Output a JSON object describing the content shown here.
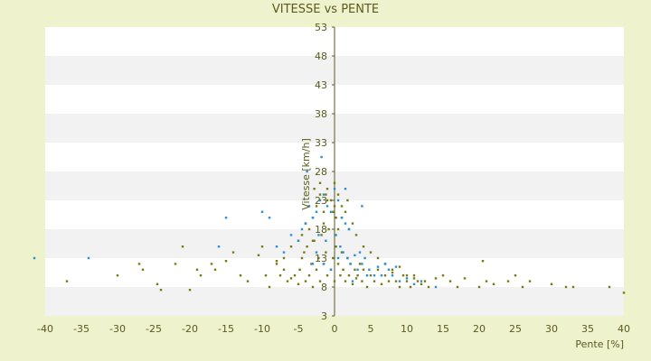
{
  "chart_data": {
    "type": "scatter",
    "title": "VITESSE vs PENTE",
    "xlabel": "Pente [%]",
    "ylabel": "Vitesse [km/h]",
    "xlim": [
      -40,
      40
    ],
    "ylim": [
      3,
      53
    ],
    "x_ticks": [
      -40,
      -35,
      -30,
      -25,
      -20,
      -15,
      -10,
      -5,
      0,
      5,
      10,
      15,
      20,
      25,
      30,
      35,
      40
    ],
    "y_ticks": [
      3,
      8,
      13,
      18,
      23,
      28,
      33,
      38,
      43,
      48,
      53
    ],
    "grid": "horizontal bands",
    "legend": "none",
    "colors": {
      "background": "#eef2cd",
      "plot_band_light": "#ffffff",
      "plot_band_dark": "#f2f2f2",
      "axis": "#5a5a1e",
      "series_olive": "#7a7a14",
      "series_blue": "#2a8fd4"
    },
    "series": [
      {
        "color": "#7a7a14",
        "points": [
          [
            -37,
            9
          ],
          [
            -30,
            10
          ],
          [
            -27,
            12
          ],
          [
            -26.5,
            11
          ],
          [
            -24.5,
            8.5
          ],
          [
            -24,
            7.5
          ],
          [
            -22,
            12
          ],
          [
            -21,
            15
          ],
          [
            -20,
            7.5
          ],
          [
            -19,
            11
          ],
          [
            -18.5,
            10
          ],
          [
            -17,
            12
          ],
          [
            -16.5,
            11
          ],
          [
            -15,
            12.5
          ],
          [
            -14,
            14
          ],
          [
            -13,
            10
          ],
          [
            -12,
            9
          ],
          [
            -10.5,
            13.5
          ],
          [
            -10,
            15
          ],
          [
            -9.5,
            10
          ],
          [
            -9,
            8
          ],
          [
            -8,
            12
          ],
          [
            -7.5,
            10
          ],
          [
            -7,
            11
          ],
          [
            -6.5,
            9
          ],
          [
            -6,
            9.5
          ],
          [
            -5.5,
            10
          ],
          [
            -5,
            8.5
          ],
          [
            -4.8,
            11
          ],
          [
            -4.5,
            13
          ],
          [
            -4.2,
            14
          ],
          [
            -4,
            9
          ],
          [
            -3.8,
            15
          ],
          [
            -3.5,
            10
          ],
          [
            -3.2,
            12
          ],
          [
            -3,
            8
          ],
          [
            -2.8,
            16
          ],
          [
            -2.5,
            11
          ],
          [
            -2.2,
            13
          ],
          [
            -2,
            9
          ],
          [
            -1.8,
            17
          ],
          [
            -1.5,
            12
          ],
          [
            -1.2,
            14
          ],
          [
            -1,
            10
          ],
          [
            -0.8,
            18
          ],
          [
            -0.5,
            11
          ],
          [
            -0.2,
            13
          ],
          [
            0,
            9
          ],
          [
            0.2,
            15
          ],
          [
            0.5,
            12
          ],
          [
            0.8,
            10
          ],
          [
            1,
            14
          ],
          [
            1.2,
            11
          ],
          [
            1.5,
            9
          ],
          [
            1.8,
            13
          ],
          [
            2,
            10
          ],
          [
            2.2,
            12
          ],
          [
            2.5,
            8.5
          ],
          [
            2.8,
            11
          ],
          [
            3,
            9.5
          ],
          [
            3.2,
            10
          ],
          [
            3.5,
            12
          ],
          [
            3.8,
            9
          ],
          [
            4,
            11
          ],
          [
            4.5,
            8
          ],
          [
            5,
            10
          ],
          [
            5.5,
            9
          ],
          [
            6,
            11
          ],
          [
            6.5,
            8.5
          ],
          [
            7,
            10
          ],
          [
            7.5,
            9
          ],
          [
            8,
            10.5
          ],
          [
            8.5,
            9
          ],
          [
            9,
            8
          ],
          [
            9.5,
            10
          ],
          [
            10,
            9
          ],
          [
            10.5,
            8
          ],
          [
            11,
            10
          ],
          [
            11.5,
            9
          ],
          [
            12,
            8.5
          ],
          [
            12.5,
            9
          ],
          [
            13,
            8
          ],
          [
            14,
            9.5
          ],
          [
            15,
            10
          ],
          [
            16,
            9
          ],
          [
            17,
            8
          ],
          [
            18,
            9.5
          ],
          [
            20,
            8
          ],
          [
            20.5,
            12.5
          ],
          [
            21,
            9
          ],
          [
            22,
            8.5
          ],
          [
            24,
            9
          ],
          [
            25,
            10
          ],
          [
            26,
            8
          ],
          [
            27,
            9
          ],
          [
            30,
            8.5
          ],
          [
            32,
            8
          ],
          [
            33,
            8
          ],
          [
            38,
            8
          ],
          [
            40,
            7
          ],
          [
            -3,
            20
          ],
          [
            -2.5,
            22
          ],
          [
            -2,
            24
          ],
          [
            -1.5,
            21
          ],
          [
            -1,
            25
          ],
          [
            -0.5,
            23
          ],
          [
            0,
            22
          ],
          [
            0.5,
            24
          ],
          [
            1,
            20
          ],
          [
            1.5,
            21
          ],
          [
            -2,
            26
          ],
          [
            -1,
            23
          ],
          [
            0,
            26
          ],
          [
            1,
            22
          ],
          [
            -3.5,
            18
          ],
          [
            2.5,
            19
          ],
          [
            -1.5,
            19
          ],
          [
            0.5,
            18
          ],
          [
            3,
            17
          ],
          [
            -4,
            19
          ],
          [
            -2.8,
            25
          ],
          [
            -1.2,
            24
          ],
          [
            0.2,
            20
          ],
          [
            1.8,
            23
          ],
          [
            -0.2,
            21
          ],
          [
            2,
            18
          ],
          [
            -3,
            16
          ],
          [
            4,
            15
          ],
          [
            -4.5,
            17
          ],
          [
            5,
            14
          ],
          [
            -5,
            16
          ],
          [
            6,
            13
          ],
          [
            -6,
            15
          ],
          [
            7,
            12
          ],
          [
            8,
            11
          ],
          [
            -7,
            13
          ],
          [
            9,
            11.5
          ],
          [
            -8,
            12.5
          ],
          [
            10,
            10
          ],
          [
            11,
            9.5
          ]
        ]
      },
      {
        "color": "#2a8fd4",
        "points": [
          [
            -41.5,
            13
          ],
          [
            -34,
            13
          ],
          [
            -15,
            20
          ],
          [
            -16,
            15
          ],
          [
            -10,
            21
          ],
          [
            -9,
            20
          ],
          [
            -8,
            15
          ],
          [
            -7,
            14
          ],
          [
            -6,
            17
          ],
          [
            -5,
            16
          ],
          [
            -4.5,
            18
          ],
          [
            -4,
            19
          ],
          [
            -3.5,
            22
          ],
          [
            -3,
            20
          ],
          [
            -2.5,
            21
          ],
          [
            -2,
            23
          ],
          [
            -1.5,
            24
          ],
          [
            -1,
            22
          ],
          [
            -0.5,
            21
          ],
          [
            0,
            25
          ],
          [
            0.5,
            23
          ],
          [
            1,
            20
          ],
          [
            1.5,
            19
          ],
          [
            2,
            18
          ],
          [
            -1.8,
            30.5
          ],
          [
            -3.8,
            28
          ],
          [
            1.5,
            25
          ],
          [
            3.8,
            22
          ],
          [
            -2.2,
            17
          ],
          [
            -1.2,
            16
          ],
          [
            0.2,
            17
          ],
          [
            0.8,
            15
          ],
          [
            1.2,
            14
          ],
          [
            1.8,
            13
          ],
          [
            2.2,
            12
          ],
          [
            2.8,
            13.5
          ],
          [
            3.2,
            11
          ],
          [
            3.8,
            12
          ],
          [
            4.2,
            13
          ],
          [
            4.8,
            11
          ],
          [
            5.5,
            10
          ],
          [
            6,
            11.5
          ],
          [
            6.5,
            10
          ],
          [
            7,
            12
          ],
          [
            7.5,
            11
          ],
          [
            8,
            10
          ],
          [
            8.5,
            11.5
          ],
          [
            9,
            9
          ],
          [
            10,
            9.5
          ],
          [
            11,
            8.5
          ],
          [
            12,
            9
          ],
          [
            14,
            8
          ],
          [
            -2.5,
            14
          ],
          [
            -1.5,
            12
          ],
          [
            -0.5,
            11
          ],
          [
            0.5,
            13
          ],
          [
            -3,
            12
          ],
          [
            2.5,
            9
          ],
          [
            3.5,
            14
          ],
          [
            4.5,
            10
          ]
        ]
      }
    ]
  }
}
